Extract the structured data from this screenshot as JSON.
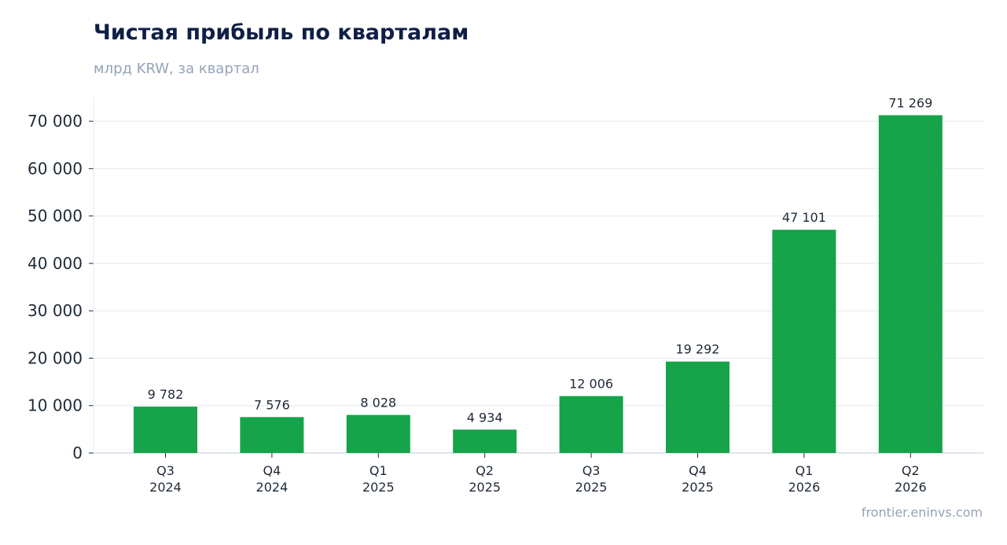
{
  "chart_data": {
    "type": "bar",
    "title": "Чистая прибыль по кварталам",
    "subtitle": "млрд KRW, за квартал",
    "categories": [
      [
        "Q3",
        "2024"
      ],
      [
        "Q4",
        "2024"
      ],
      [
        "Q1",
        "2025"
      ],
      [
        "Q2",
        "2025"
      ],
      [
        "Q3",
        "2025"
      ],
      [
        "Q4",
        "2025"
      ],
      [
        "Q1",
        "2026"
      ],
      [
        "Q2",
        "2026"
      ]
    ],
    "values": [
      9782,
      7576,
      8028,
      4934,
      12006,
      19292,
      47101,
      71269
    ],
    "value_labels": [
      "9 782",
      "7 576",
      "8 028",
      "4 934",
      "12 006",
      "19 292",
      "47 101",
      "71 269"
    ],
    "ylim": [
      0,
      75000
    ],
    "yticks": [
      0,
      10000,
      20000,
      30000,
      40000,
      50000,
      60000,
      70000
    ],
    "ytick_labels": [
      "0",
      "10 000",
      "20 000",
      "30 000",
      "40 000",
      "50 000",
      "60 000",
      "70 000"
    ],
    "bar_color": "#16a34a",
    "grid": true,
    "legend": "none"
  },
  "source": "frontier.eninvs.com"
}
